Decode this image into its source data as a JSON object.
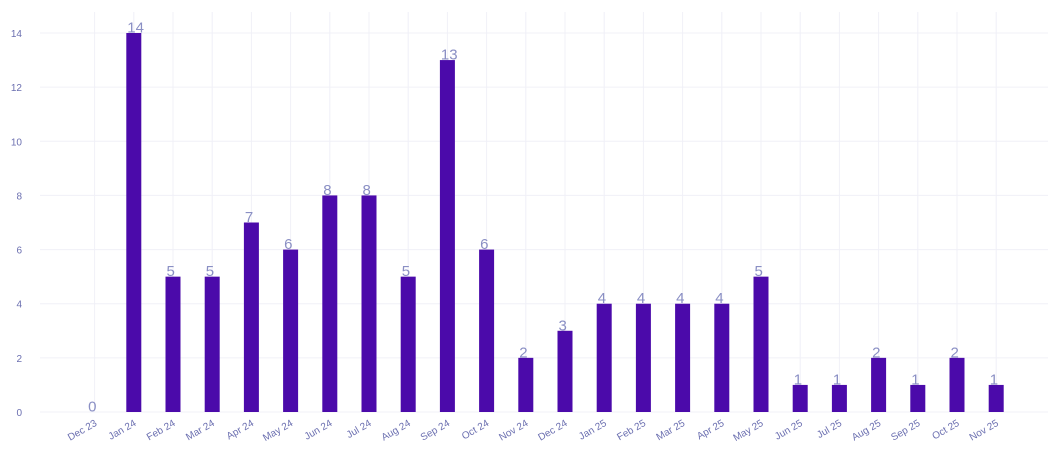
{
  "chart_data": {
    "type": "bar",
    "categories": [
      "Dec 23",
      "Jan 24",
      "Feb 24",
      "Mar 24",
      "Apr 24",
      "May 24",
      "Jun 24",
      "Jul 24",
      "Aug 24",
      "Sep 24",
      "Oct 24",
      "Nov 24",
      "Dec 24",
      "Jan 25",
      "Feb 25",
      "Mar 25",
      "Apr 25",
      "May 25",
      "Jun 25",
      "Jul 25",
      "Aug 25",
      "Sep 25",
      "Oct 25",
      "Nov 25"
    ],
    "values": [
      0,
      14,
      5,
      5,
      7,
      6,
      8,
      8,
      5,
      13,
      6,
      2,
      3,
      4,
      4,
      4,
      4,
      5,
      1,
      1,
      2,
      1,
      2,
      1
    ],
    "title": "",
    "xlabel": "",
    "ylabel": "",
    "ylim": [
      0,
      14.5
    ],
    "yticks": [
      0,
      2,
      4,
      6,
      8,
      10,
      12,
      14
    ],
    "grid": true,
    "colors": {
      "bar": "#4b0aaa",
      "label": "#8a8fc4",
      "tick": "#6b6fb0",
      "grid": "#f0f0f7"
    }
  }
}
